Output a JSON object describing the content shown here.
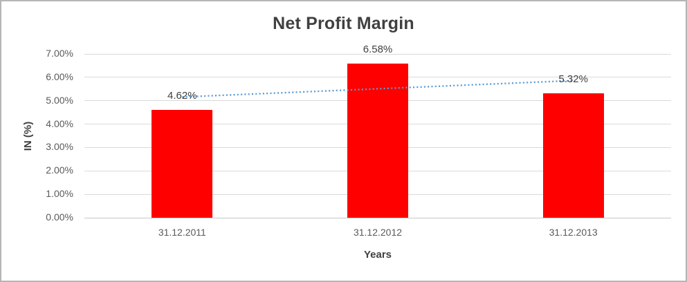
{
  "window": {
    "background_color": "#ffffff",
    "border_color": "#b5b5b5"
  },
  "chart_data": {
    "type": "bar",
    "title": "Net Profit Margin",
    "categories": [
      "31.12.2011",
      "31.12.2012",
      "31.12.2013"
    ],
    "values": [
      4.62,
      6.58,
      5.32
    ],
    "data_labels": [
      "4.62%",
      "6.58%",
      "5.32%"
    ],
    "xlabel": "Years",
    "ylabel": "IN (%)",
    "ylim": [
      0,
      7
    ],
    "ytick_step": 1,
    "ytick_labels": [
      "0.00%",
      "1.00%",
      "2.00%",
      "3.00%",
      "4.00%",
      "5.00%",
      "6.00%",
      "7.00%"
    ],
    "grid": true,
    "legend": "none",
    "bar_color": "#ff0000",
    "gridline_color": "#d9d9d9",
    "baseline_color": "#c8c8c8",
    "title_color": "#404040",
    "tick_color": "#595959",
    "trendline": {
      "type": "linear",
      "style": "dotted",
      "color": "#5b9bd5",
      "start_value": 5.16,
      "end_value": 5.86
    }
  }
}
